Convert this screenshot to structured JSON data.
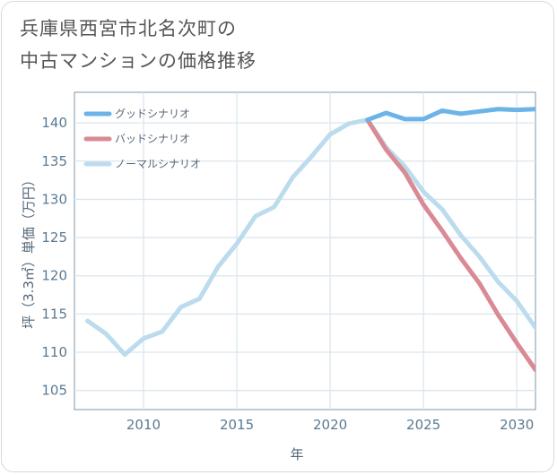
{
  "title_lines": [
    "兵庫県西宮市北名次町の",
    "中古マンションの価格推移"
  ],
  "chart_data": {
    "type": "line",
    "title": "兵庫県西宮市北名次町の中古マンションの価格推移",
    "xlabel": "年",
    "ylabel": "坪（3.3㎡）単価（万円）",
    "xlim": [
      2006.3,
      2031
    ],
    "ylim": [
      102.5,
      144
    ],
    "x_ticks": [
      2010,
      2015,
      2020,
      2025,
      2030
    ],
    "y_ticks": [
      105,
      110,
      115,
      120,
      125,
      130,
      135,
      140
    ],
    "x_tick_labels": [
      "2010",
      "2015",
      "2020",
      "2025",
      "2030"
    ],
    "y_tick_labels": [
      "105",
      "110",
      "115",
      "120",
      "125",
      "130",
      "135",
      "140"
    ],
    "legend_position": "top-left",
    "series": [
      {
        "name": "グッドシナリオ",
        "color": "#6cb4e8",
        "x": [
          2022,
          2023,
          2024,
          2025,
          2026,
          2027,
          2028,
          2029,
          2030,
          2031
        ],
        "values": [
          140.4,
          141.3,
          140.5,
          140.5,
          141.6,
          141.2,
          141.5,
          141.8,
          141.7,
          141.8
        ]
      },
      {
        "name": "バッドシナリオ",
        "color": "#d98a94",
        "x": [
          2022,
          2023,
          2024,
          2025,
          2026,
          2027,
          2028,
          2029,
          2030,
          2031
        ],
        "values": [
          140.4,
          136.5,
          133.5,
          129.3,
          125.9,
          122.3,
          119.0,
          114.9,
          111.2,
          107.7
        ]
      },
      {
        "name": "ノーマルシナリオ",
        "color": "#bcdcee",
        "x": [
          2007,
          2008,
          2009,
          2010,
          2011,
          2012,
          2013,
          2014,
          2015,
          2016,
          2017,
          2018,
          2019,
          2020,
          2021,
          2022,
          2023,
          2024,
          2025,
          2026,
          2027,
          2028,
          2029,
          2030,
          2031
        ],
        "values": [
          114.1,
          112.4,
          109.7,
          111.8,
          112.7,
          115.9,
          117.0,
          121.2,
          124.2,
          127.8,
          129.0,
          132.9,
          135.6,
          138.5,
          139.9,
          140.4,
          136.8,
          134.3,
          131.0,
          128.7,
          125.3,
          122.5,
          119.2,
          116.7,
          113.2
        ]
      }
    ]
  }
}
